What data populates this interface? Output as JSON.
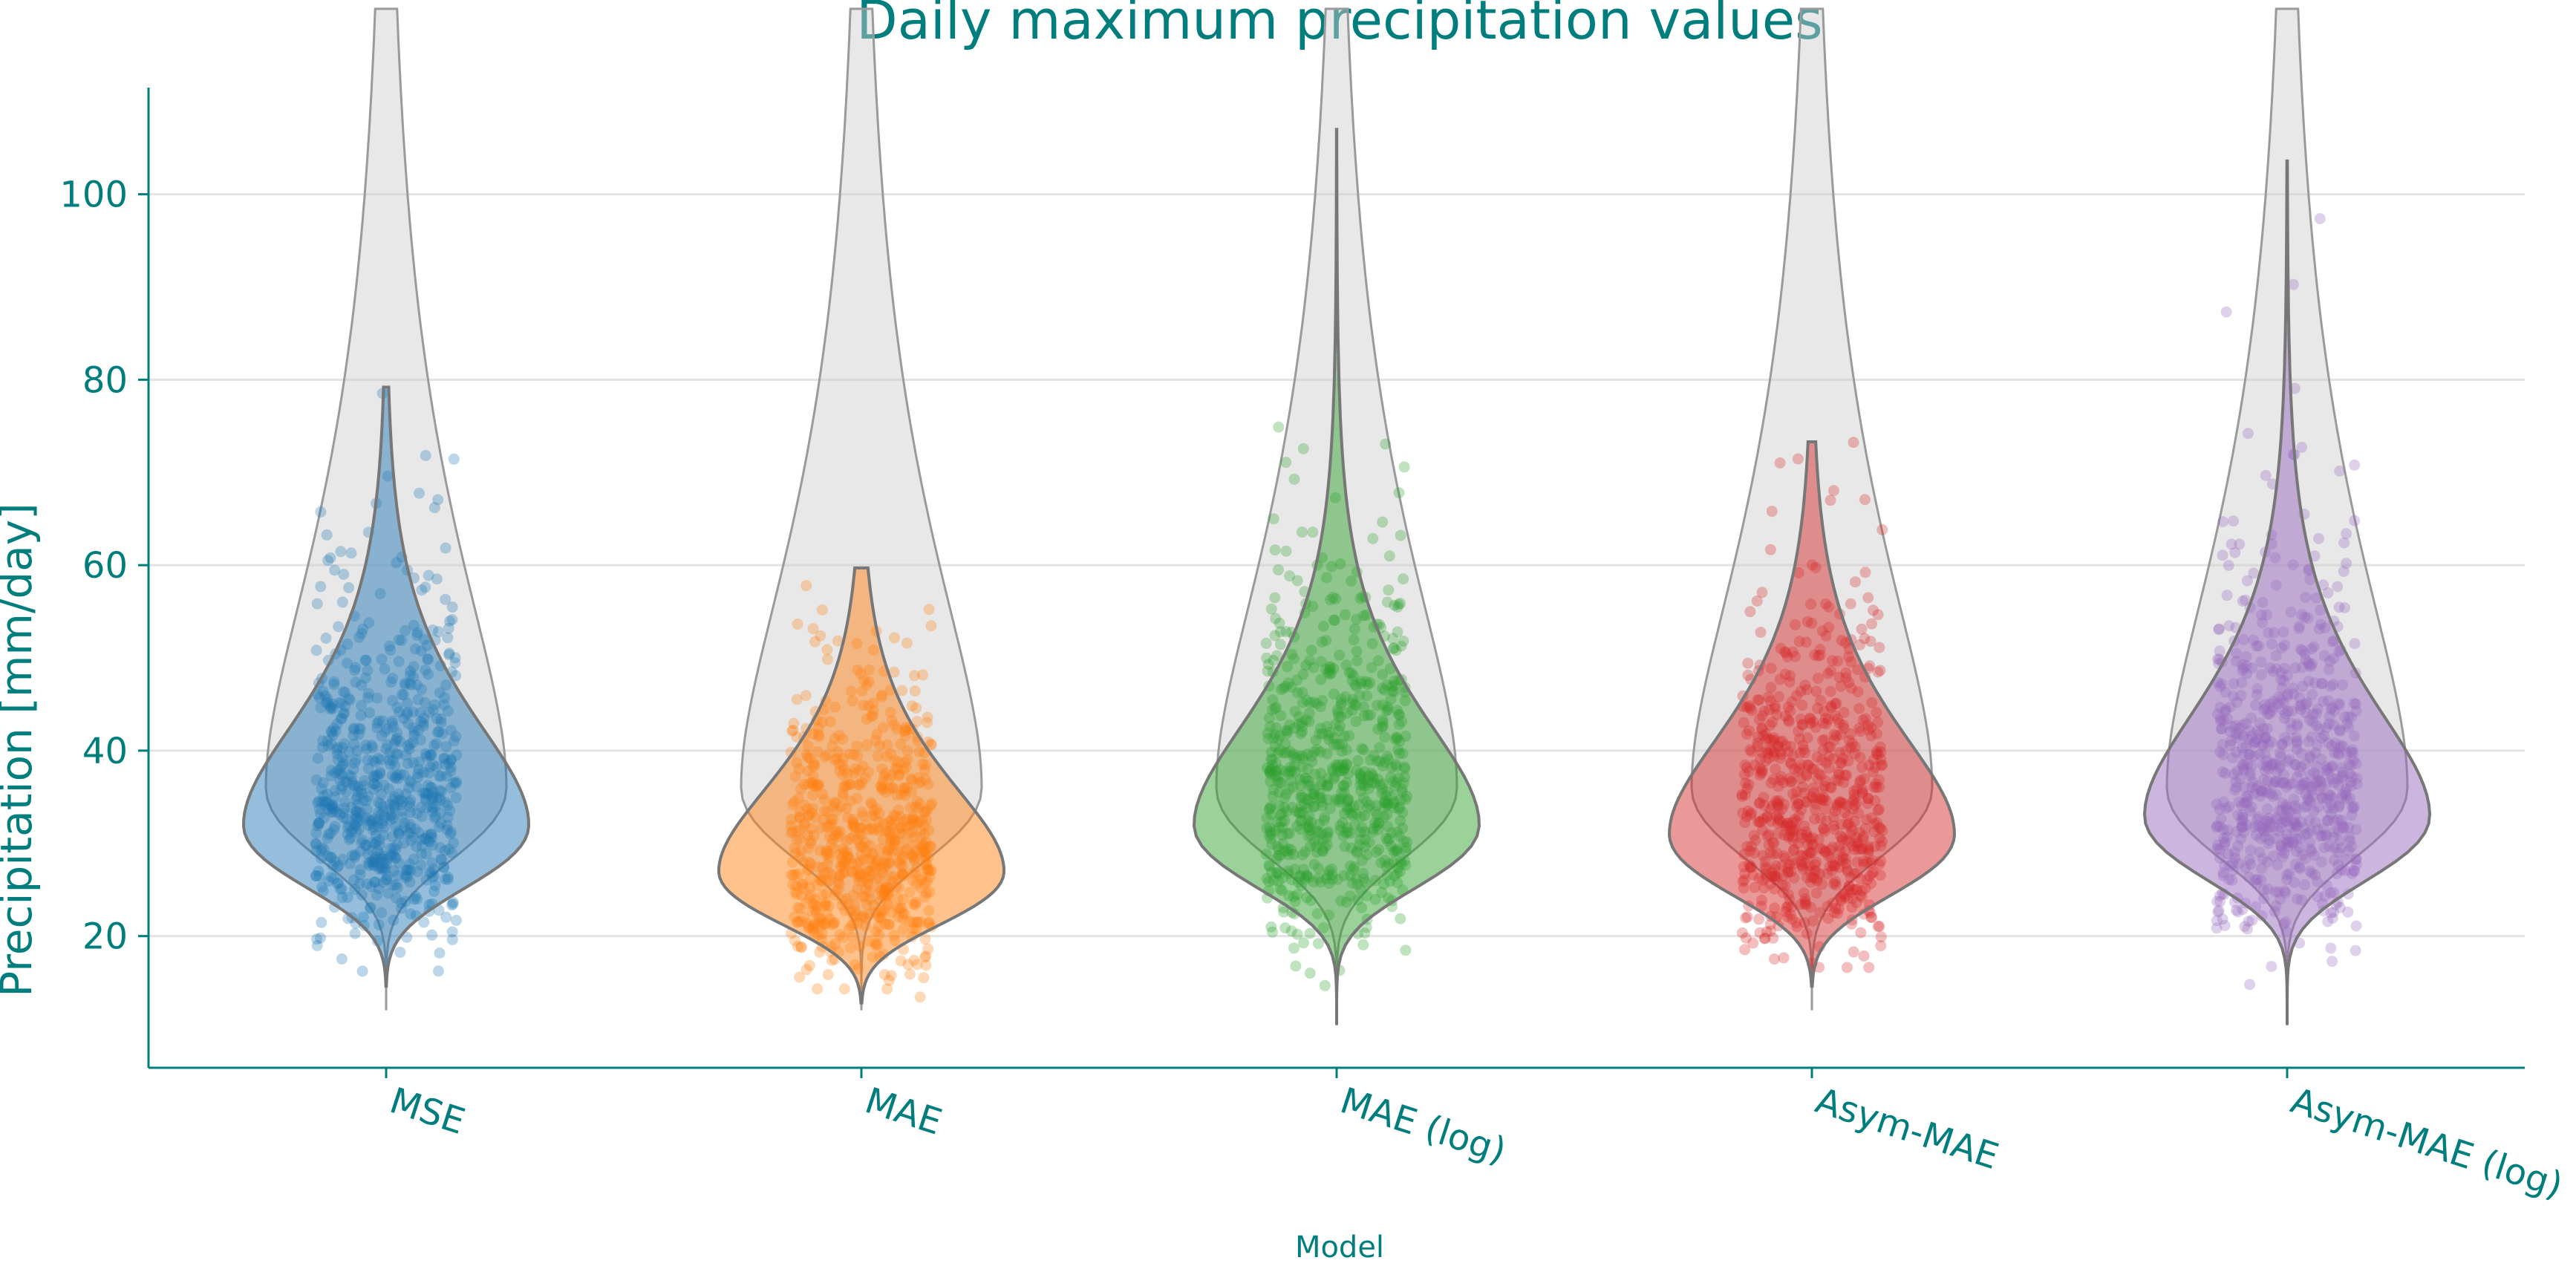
{
  "chart_data": {
    "type": "violin",
    "title": "Daily maximum precipitation values",
    "xlabel": "Model",
    "ylabel": "Precipitation [mm/day]",
    "ylim": [
      5.8,
      111.5
    ],
    "yticks": [
      20,
      40,
      60,
      80,
      100
    ],
    "grid": "horizontal",
    "legend": "none",
    "categories": [
      "MSE",
      "MAE",
      "MAE (log)",
      "Asym-MAE",
      "Asym-MAE (log)"
    ],
    "reference_distribution": {
      "description": "grey",
      "min": 12,
      "max": 120,
      "median": 36,
      "color": "#cccccc"
    },
    "series": [
      {
        "category": "MSE",
        "color": "#1f77b4",
        "min": 14.6,
        "max": 79.2,
        "peak": 32,
        "mean": 37,
        "median": 35
      },
      {
        "category": "MAE",
        "color": "#ff7f0e",
        "min": 12.8,
        "max": 59.7,
        "peak": 27,
        "mean": 30,
        "median": 29
      },
      {
        "category": "MAE (log)",
        "color": "#2ca02c",
        "min": 10.4,
        "max": 107.0,
        "peak": 32,
        "mean": 39,
        "median": 36
      },
      {
        "category": "Asym-MAE",
        "color": "#d62728",
        "min": 14.6,
        "max": 73.3,
        "peak": 31,
        "mean": 35,
        "median": 34
      },
      {
        "category": "Asym-MAE (log)",
        "color": "#9467bd",
        "min": 10.4,
        "max": 103.6,
        "peak": 33,
        "mean": 40,
        "median": 37
      }
    ],
    "text_color": "#007d7d",
    "grid_color": "#e3e3e3"
  }
}
